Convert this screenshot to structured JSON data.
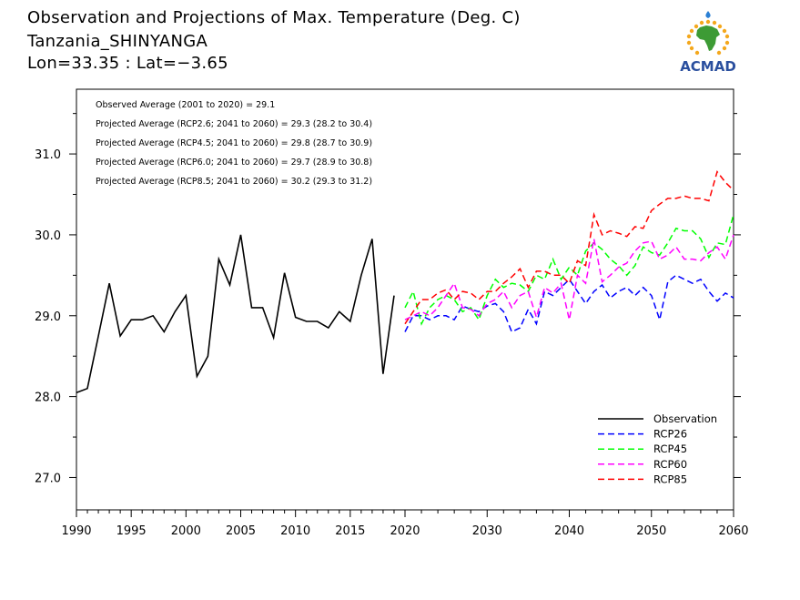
{
  "header": {
    "title": "Observation and Projections of Max. Temperature (Deg. C)",
    "location": "Tanzania_SHINYANGA",
    "coords": "Lon=33.35 : Lat=−3.65"
  },
  "logo": {
    "text": "ACMAD",
    "icon": "africa-map-icon"
  },
  "chart_data": {
    "type": "line",
    "title": "Observation and Projections of Max. Temperature (Deg. C)",
    "xlabel": "",
    "ylabel": "",
    "xlim": [
      1990,
      2060
    ],
    "ylim": [
      26.6,
      31.8
    ],
    "grid": false,
    "legend_position": "bottom-right",
    "x_ticks": [
      1990,
      1995,
      2000,
      2005,
      2010,
      2015,
      2020,
      2030,
      2040,
      2050,
      2060
    ],
    "y_ticks": [
      27.0,
      28.0,
      29.0,
      30.0,
      31.0
    ],
    "annotations": [
      "Observed Average (2001 to 2020) = 29.1",
      "Projected Average (RCP2.6; 2041 to 2060) = 29.3 (28.2 to 30.4)",
      "Projected Average (RCP4.5; 2041 to 2060) = 29.8 (28.7 to 30.9)",
      "Projected Average (RCP6.0; 2041 to 2060) = 29.7 (28.9 to 30.8)",
      "Projected Average (RCP8.5; 2041 to 2060) = 30.2 (29.3 to 31.2)"
    ],
    "series": [
      {
        "name": "Observation",
        "color": "#000000",
        "dash": false,
        "x": [
          1990,
          1991,
          1992,
          1993,
          1994,
          1995,
          1996,
          1997,
          1998,
          1999,
          2000,
          2001,
          2002,
          2003,
          2004,
          2005,
          2006,
          2007,
          2008,
          2009,
          2010,
          2011,
          2012,
          2013,
          2014,
          2015,
          2016,
          2017,
          2018,
          2019
        ],
        "y": [
          28.05,
          28.1,
          28.75,
          29.4,
          28.75,
          28.95,
          28.95,
          29.0,
          28.8,
          29.05,
          29.25,
          28.25,
          28.5,
          29.7,
          29.38,
          30.0,
          29.1,
          29.1,
          28.73,
          29.53,
          28.98,
          28.93,
          28.93,
          28.85,
          29.05,
          28.93,
          29.5,
          29.95,
          28.28,
          29.25
        ]
      },
      {
        "name": "RCP26",
        "color": "#0000ff",
        "dash": true,
        "x": [
          2020,
          2021,
          2022,
          2023,
          2024,
          2025,
          2026,
          2027,
          2028,
          2029,
          2030,
          2031,
          2032,
          2033,
          2034,
          2035,
          2036,
          2037,
          2038,
          2039,
          2040,
          2041,
          2042,
          2043,
          2044,
          2045,
          2046,
          2047,
          2048,
          2049,
          2050,
          2051,
          2052,
          2053,
          2054,
          2055,
          2056,
          2057,
          2058,
          2059,
          2060
        ],
        "y": [
          28.8,
          29.0,
          29.0,
          28.95,
          29.0,
          29.0,
          28.95,
          29.12,
          29.08,
          29.05,
          29.12,
          29.15,
          29.05,
          28.8,
          28.85,
          29.08,
          28.9,
          29.3,
          29.25,
          29.35,
          29.45,
          29.3,
          29.15,
          29.3,
          29.38,
          29.22,
          29.3,
          29.35,
          29.25,
          29.35,
          29.25,
          28.95,
          29.42,
          29.5,
          29.45,
          29.4,
          29.45,
          29.3,
          29.18,
          29.28,
          29.22
        ]
      },
      {
        "name": "RCP45",
        "color": "#00ff00",
        "dash": true,
        "x": [
          2020,
          2021,
          2022,
          2023,
          2024,
          2025,
          2026,
          2027,
          2028,
          2029,
          2030,
          2031,
          2032,
          2033,
          2034,
          2035,
          2036,
          2037,
          2038,
          2039,
          2040,
          2041,
          2042,
          2043,
          2044,
          2045,
          2046,
          2047,
          2048,
          2049,
          2050,
          2051,
          2052,
          2053,
          2054,
          2055,
          2056,
          2057,
          2058,
          2059,
          2060
        ],
        "y": [
          29.1,
          29.3,
          28.9,
          29.1,
          29.2,
          29.25,
          29.2,
          29.05,
          29.1,
          28.95,
          29.25,
          29.45,
          29.35,
          29.4,
          29.38,
          29.3,
          29.5,
          29.45,
          29.7,
          29.45,
          29.6,
          29.5,
          29.8,
          29.9,
          29.82,
          29.7,
          29.62,
          29.5,
          29.62,
          29.85,
          29.78,
          29.75,
          29.9,
          30.08,
          30.05,
          30.05,
          29.95,
          29.72,
          29.9,
          29.88,
          30.25
        ]
      },
      {
        "name": "RCP60",
        "color": "#ff00ff",
        "dash": true,
        "x": [
          2020,
          2021,
          2022,
          2023,
          2024,
          2025,
          2026,
          2027,
          2028,
          2029,
          2030,
          2031,
          2032,
          2033,
          2034,
          2035,
          2036,
          2037,
          2038,
          2039,
          2040,
          2041,
          2042,
          2043,
          2044,
          2045,
          2046,
          2047,
          2048,
          2049,
          2050,
          2051,
          2052,
          2053,
          2054,
          2055,
          2056,
          2057,
          2058,
          2059,
          2060
        ],
        "y": [
          28.95,
          29.0,
          29.05,
          29.0,
          29.1,
          29.25,
          29.4,
          29.1,
          29.08,
          29.0,
          29.15,
          29.2,
          29.3,
          29.1,
          29.25,
          29.3,
          28.98,
          29.35,
          29.28,
          29.4,
          28.95,
          29.5,
          29.4,
          29.95,
          29.42,
          29.5,
          29.6,
          29.65,
          29.8,
          29.9,
          29.92,
          29.7,
          29.75,
          29.85,
          29.7,
          29.7,
          29.68,
          29.78,
          29.85,
          29.7,
          30.0
        ]
      },
      {
        "name": "RCP85",
        "color": "#ff0000",
        "dash": true,
        "x": [
          2020,
          2021,
          2022,
          2023,
          2024,
          2025,
          2026,
          2027,
          2028,
          2029,
          2030,
          2031,
          2032,
          2033,
          2034,
          2035,
          2036,
          2037,
          2038,
          2039,
          2040,
          2041,
          2042,
          2043,
          2044,
          2045,
          2046,
          2047,
          2048,
          2049,
          2050,
          2051,
          2052,
          2053,
          2054,
          2055,
          2056,
          2057,
          2058,
          2059,
          2060
        ],
        "y": [
          28.9,
          29.05,
          29.2,
          29.2,
          29.28,
          29.32,
          29.2,
          29.3,
          29.28,
          29.2,
          29.3,
          29.3,
          29.4,
          29.48,
          29.58,
          29.35,
          29.55,
          29.55,
          29.5,
          29.5,
          29.4,
          29.68,
          29.62,
          30.25,
          30.0,
          30.05,
          30.02,
          29.98,
          30.1,
          30.08,
          30.3,
          30.38,
          30.45,
          30.45,
          30.48,
          30.45,
          30.45,
          30.42,
          30.78,
          30.65,
          30.55
        ]
      }
    ]
  }
}
